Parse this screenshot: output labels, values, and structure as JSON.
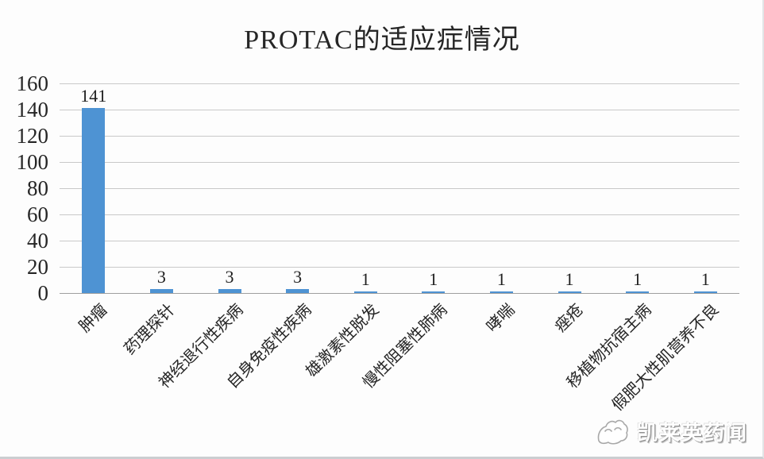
{
  "chart_data": {
    "type": "bar",
    "title": "PROTAC的适应症情况",
    "categories": [
      "肿瘤",
      "药理探针",
      "神经退行性疾病",
      "自身免疫性疾病",
      "雄激素性脱发",
      "慢性阻塞性肺病",
      "哮喘",
      "痤疮",
      "移植物抗宿主病",
      "假肥大性肌营养不良"
    ],
    "values": [
      141,
      3,
      3,
      3,
      1,
      1,
      1,
      1,
      1,
      1
    ],
    "data_labels": [
      141,
      3,
      3,
      3,
      1,
      1,
      1,
      1,
      1,
      1
    ],
    "xlabel": "",
    "ylabel": "",
    "ylim": [
      0,
      160
    ],
    "ytick_step": 20,
    "ytick_labels": [
      "0",
      "20",
      "40",
      "60",
      "80",
      "100",
      "120",
      "140",
      "160"
    ],
    "grid": "horizontal",
    "legend": "none",
    "bar_color": "#4e93d3"
  },
  "watermark": {
    "text": "凯莱英药闻"
  },
  "colors": {
    "bar": "#4e93d3",
    "gridline": "#c9c9c9",
    "axis_line": "#9f9f9f",
    "text": "#262626",
    "background": "#fdfdfd"
  }
}
